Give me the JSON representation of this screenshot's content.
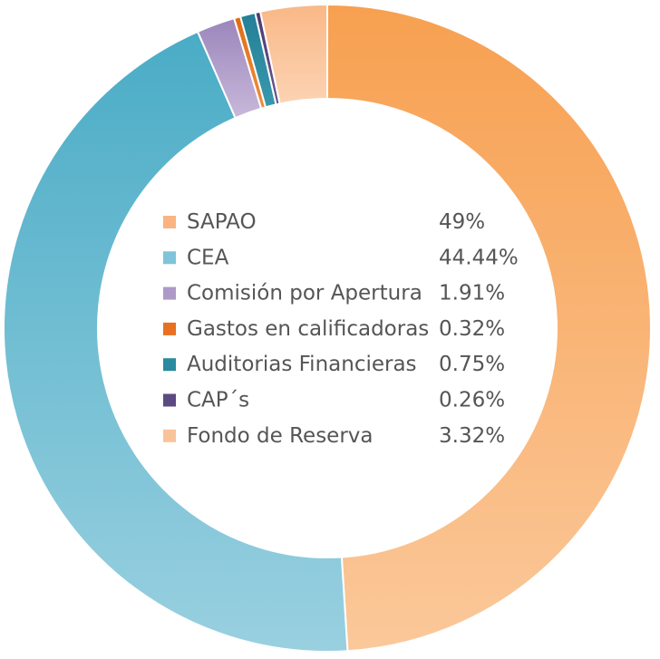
{
  "chart_data": {
    "type": "pie",
    "title": "",
    "legend_position": "center",
    "categories": [
      "SAPAO",
      "CEA",
      "Comisión por Apertura",
      "Gastos en calificadoras",
      "Auditorias Financieras",
      "CAP´s",
      "Fondo de Reserva"
    ],
    "values": [
      49,
      44.44,
      1.91,
      0.32,
      0.75,
      0.26,
      3.32
    ],
    "value_labels": [
      "49%",
      "44.44%",
      "1.91%",
      "0.32%",
      "0.75%",
      "0.26%",
      "3.32%"
    ],
    "colors": [
      {
        "top": "#f7a050",
        "bottom": "#fbc89a",
        "legend": "#f9b482"
      },
      {
        "top": "#4aacc6",
        "bottom": "#99d0e0",
        "legend": "#7fc4d8"
      },
      {
        "top": "#9b86bb",
        "bottom": "#c8b8da",
        "legend": "#ad9ac8"
      },
      {
        "top": "#e06c14",
        "bottom": "#ef8f3f",
        "legend": "#e87020"
      },
      {
        "top": "#237f96",
        "bottom": "#3a98ae",
        "legend": "#2a8aa0"
      },
      {
        "top": "#4d3a73",
        "bottom": "#6a5790",
        "legend": "#5b4a80"
      },
      {
        "top": "#f9b887",
        "bottom": "#fcd3b3",
        "legend": "#f9c39a"
      }
    ]
  }
}
